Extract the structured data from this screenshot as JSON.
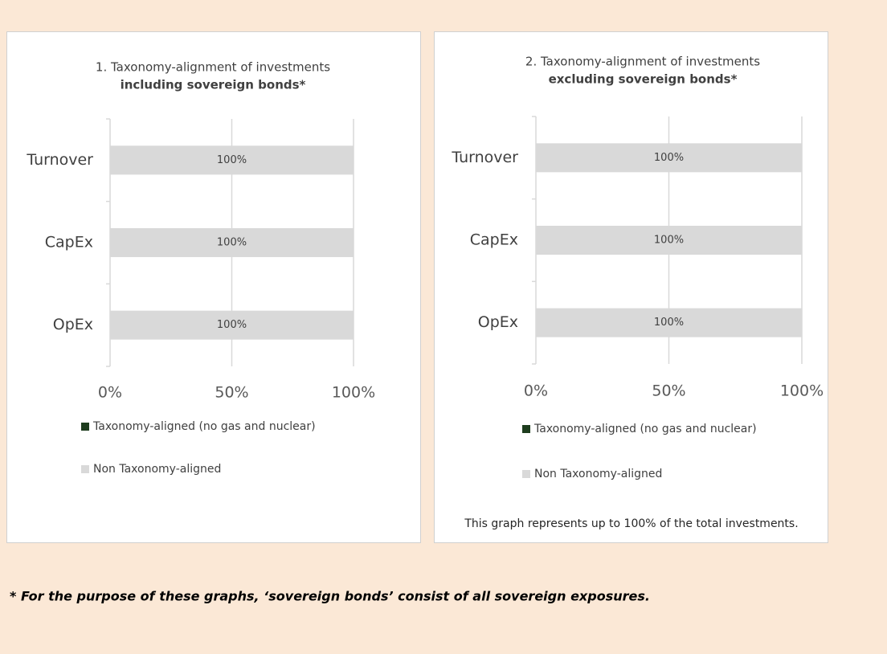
{
  "chart_data": [
    {
      "type": "bar",
      "orientation": "horizontal",
      "stacked": true,
      "title": "1. Taxonomy-alignment of investments",
      "subtitle": "including sovereign bonds*",
      "categories": [
        "Turnover",
        "CapEx",
        "OpEx"
      ],
      "series": [
        {
          "name": "Taxonomy-aligned (no gas and nuclear)",
          "color": "#1e3d1e",
          "values": [
            0,
            0,
            0
          ]
        },
        {
          "name": "Non Taxonomy-aligned",
          "color": "#d9d9d9",
          "values": [
            100,
            100,
            100
          ],
          "value_labels": [
            "100%",
            "100%",
            "100%"
          ]
        }
      ],
      "xlim": [
        0,
        100
      ],
      "xticks": [
        {
          "value": 0,
          "label": "0%"
        },
        {
          "value": 50,
          "label": "50%"
        },
        {
          "value": 100,
          "label": "100%"
        }
      ],
      "grid": true
    },
    {
      "type": "bar",
      "orientation": "horizontal",
      "stacked": true,
      "title": "2. Taxonomy-alignment of investments",
      "subtitle": "excluding sovereign bonds*",
      "categories": [
        "Turnover",
        "CapEx",
        "OpEx"
      ],
      "series": [
        {
          "name": "Taxonomy-aligned (no gas and nuclear)",
          "color": "#1e3d1e",
          "values": [
            0,
            0,
            0
          ]
        },
        {
          "name": "Non Taxonomy-aligned",
          "color": "#d9d9d9",
          "values": [
            100,
            100,
            100
          ],
          "value_labels": [
            "100%",
            "100%",
            "100%"
          ]
        }
      ],
      "xlim": [
        0,
        100
      ],
      "xticks": [
        {
          "value": 0,
          "label": "0%"
        },
        {
          "value": 50,
          "label": "50%"
        },
        {
          "value": 100,
          "label": "100%"
        }
      ],
      "grid": true,
      "note": "This graph represents up to 100% of the total investments."
    }
  ],
  "footnote": "* For the purpose of these graphs, ‘sovereign bonds’ consist of all sovereign exposures."
}
